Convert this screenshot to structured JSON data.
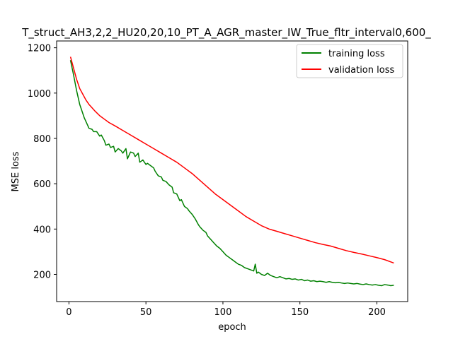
{
  "chart_data": {
    "type": "line",
    "title": "T_struct_AH3,2,2_HU20,20,10_PT_A_AGR_master_IW_True_fltr_interval0,600_",
    "xlabel": "epoch",
    "ylabel": "MSE loss",
    "xlim": [
      -8,
      220
    ],
    "ylim": [
      80,
      1230
    ],
    "xticks": [
      0,
      50,
      100,
      150,
      200
    ],
    "yticks": [
      200,
      400,
      600,
      800,
      1000,
      1200
    ],
    "grid": false,
    "legend_position": "upper right",
    "series": [
      {
        "name": "training loss",
        "color": "#008000",
        "x": [
          1,
          3,
          5,
          7,
          8,
          10,
          12,
          13,
          15,
          16,
          18,
          20,
          21,
          23,
          24,
          26,
          27,
          29,
          30,
          32,
          34,
          35,
          37,
          38,
          40,
          42,
          43,
          45,
          46,
          48,
          50,
          51,
          53,
          55,
          56,
          58,
          60,
          61,
          63,
          65,
          67,
          68,
          70,
          72,
          73,
          75,
          77,
          78,
          80,
          82,
          84,
          85,
          87,
          89,
          90,
          92,
          94,
          96,
          98,
          100,
          102,
          104,
          106,
          108,
          110,
          112,
          114,
          116,
          118,
          120,
          121,
          122,
          123,
          125,
          127,
          129,
          131,
          133,
          135,
          137,
          139,
          141,
          143,
          145,
          147,
          149,
          151,
          153,
          155,
          157,
          159,
          161,
          163,
          165,
          167,
          169,
          171,
          173,
          175,
          177,
          179,
          181,
          183,
          185,
          187,
          189,
          191,
          193,
          195,
          197,
          199,
          201,
          203,
          205,
          207,
          209,
          211
        ],
        "values": [
          1145,
          1080,
          1010,
          950,
          930,
          890,
          860,
          845,
          840,
          830,
          830,
          810,
          815,
          790,
          770,
          775,
          760,
          765,
          740,
          755,
          745,
          735,
          755,
          710,
          740,
          735,
          720,
          735,
          695,
          705,
          685,
          690,
          680,
          670,
          655,
          635,
          630,
          615,
          610,
          595,
          585,
          560,
          555,
          525,
          530,
          500,
          490,
          480,
          465,
          445,
          420,
          410,
          395,
          385,
          370,
          355,
          340,
          325,
          315,
          300,
          285,
          275,
          265,
          255,
          245,
          240,
          230,
          225,
          220,
          215,
          245,
          205,
          210,
          200,
          195,
          205,
          195,
          190,
          185,
          190,
          185,
          180,
          182,
          178,
          180,
          175,
          178,
          172,
          175,
          170,
          172,
          168,
          170,
          168,
          165,
          168,
          165,
          163,
          165,
          162,
          160,
          162,
          160,
          158,
          160,
          157,
          155,
          158,
          155,
          153,
          155,
          152,
          150,
          155,
          153,
          150,
          152
        ]
      },
      {
        "name": "validation loss",
        "color": "#ff0000",
        "x": [
          1,
          3,
          5,
          7,
          9,
          11,
          13,
          15,
          17,
          20,
          23,
          26,
          30,
          35,
          40,
          45,
          50,
          55,
          60,
          65,
          70,
          75,
          80,
          85,
          90,
          95,
          100,
          105,
          110,
          115,
          120,
          125,
          130,
          135,
          140,
          145,
          150,
          155,
          160,
          165,
          170,
          175,
          180,
          185,
          190,
          195,
          200,
          205,
          211
        ],
        "values": [
          1160,
          1110,
          1060,
          1020,
          995,
          970,
          950,
          935,
          920,
          900,
          885,
          870,
          855,
          835,
          815,
          795,
          775,
          755,
          735,
          715,
          695,
          670,
          645,
          615,
          585,
          555,
          530,
          505,
          480,
          455,
          435,
          415,
          400,
          390,
          380,
          370,
          360,
          350,
          340,
          332,
          325,
          315,
          305,
          297,
          290,
          282,
          274,
          265,
          250
        ]
      }
    ]
  }
}
